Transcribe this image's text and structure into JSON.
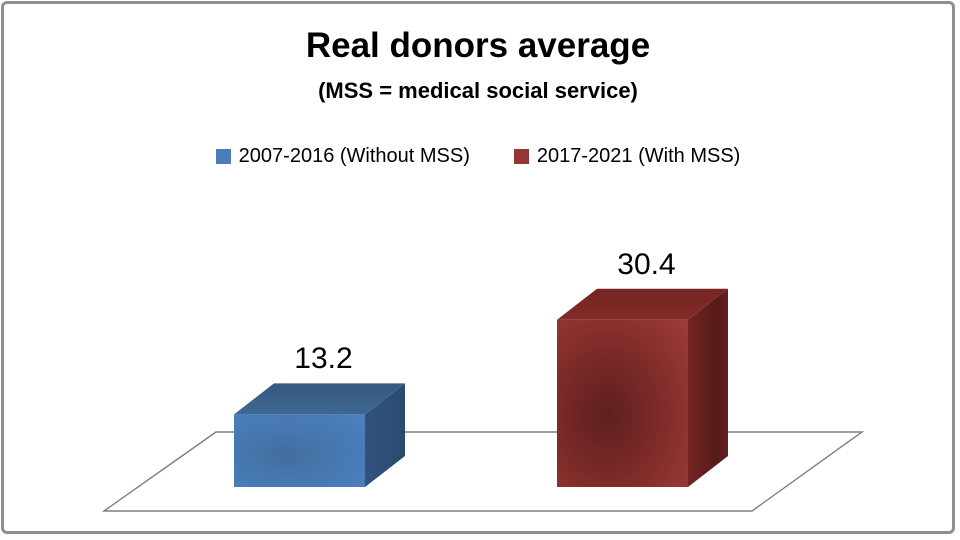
{
  "chart_data": {
    "type": "bar",
    "projection": "3d",
    "title": "Real donors average",
    "subtitle": "(MSS = medical social service)",
    "categories": [
      ""
    ],
    "series": [
      {
        "name": "2007-2016 (Without MSS)",
        "values": [
          13.2
        ],
        "color": "#4a7ebb"
      },
      {
        "name": "2017-2021 (With MSS)",
        "values": [
          30.4
        ],
        "color": "#943634"
      }
    ],
    "data_labels_visible": true,
    "legend_position": "top-center",
    "axes_visible": false,
    "gridlines": false,
    "ylim": [
      0,
      35
    ]
  },
  "colors": {
    "frame_border": "#8f8f8f",
    "floor_outline": "#7f7f7f",
    "title_text": "#000000",
    "label_text": "#000000",
    "background": "#ffffff"
  }
}
